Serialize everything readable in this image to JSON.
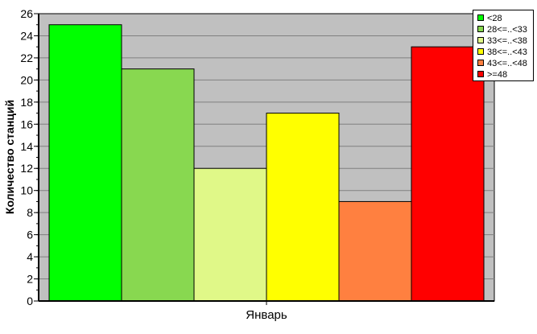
{
  "chart_data": {
    "type": "bar",
    "categories": [
      "Январь"
    ],
    "ylabel": "Количество станций",
    "xlabel": "",
    "ylim": [
      0,
      26
    ],
    "yticks": [
      0,
      2,
      4,
      6,
      8,
      10,
      12,
      14,
      16,
      18,
      20,
      22,
      24,
      26
    ],
    "grid": true,
    "legend_position": "top-right",
    "plot_background": "#c0c0c0",
    "series": [
      {
        "name": "<28",
        "values": [
          25
        ],
        "color": "#00ff00"
      },
      {
        "name": "28<=..<33",
        "values": [
          21
        ],
        "color": "#88d850"
      },
      {
        "name": "33<=..<38",
        "values": [
          12
        ],
        "color": "#e0f888"
      },
      {
        "name": "38<=..<43",
        "values": [
          17
        ],
        "color": "#ffff00"
      },
      {
        "name": "43<=..<48",
        "values": [
          9
        ],
        "color": "#ff8040"
      },
      {
        "name": ">=48",
        "values": [
          23
        ],
        "color": "#ff0000"
      }
    ]
  }
}
